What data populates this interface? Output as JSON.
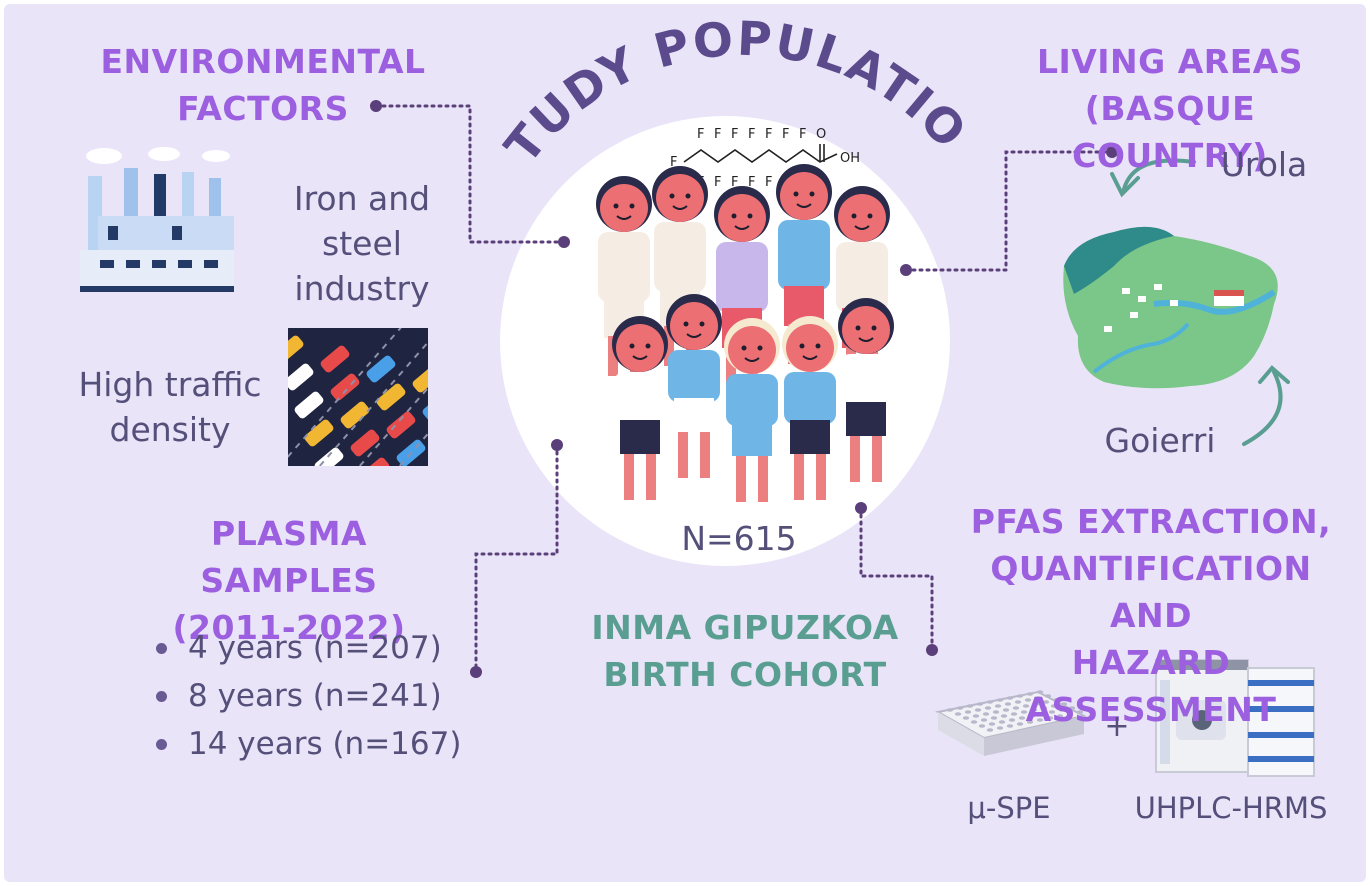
{
  "title": "STUDY POPULATION",
  "environmental": {
    "heading_line1": "ENVIRONMENTAL",
    "heading_line2": "FACTORS",
    "item1_line1": "Iron and",
    "item1_line2": "steel industry",
    "item2_line1": "High traffic",
    "item2_line2": "density"
  },
  "living_areas": {
    "heading_line1": "LIVING AREAS",
    "heading_line2": "(BASQUE COUNTRY)",
    "area1": "Urola",
    "area2": "Goierri"
  },
  "plasma": {
    "heading_line1": "PLASMA SAMPLES",
    "heading_line2": "(2011-2022)",
    "items": [
      "4 years (n=207)",
      "8 years (n=241)",
      "14 years (n=167)"
    ]
  },
  "cohort": {
    "line1": "INMA GIPUZKOA",
    "line2": "BIRTH COHORT",
    "n_label": "N=615"
  },
  "pfas": {
    "heading_line1": "PFAS EXTRACTION,",
    "heading_line2": "QUANTIFICATION AND",
    "heading_line3": "HAZARD ASSESSMENT",
    "method1": "μ-SPE",
    "plus": "+",
    "method2": "UHPLC-HRMS"
  },
  "molecule": {
    "atom_f": "F",
    "atom_o": "O",
    "atom_oh": "OH"
  },
  "colors": {
    "background": "#e9e4f8",
    "heading_purple": "#9b5fe0",
    "title_purple": "#5b4a8c",
    "cohort_green": "#5a9e92",
    "connector": "#5a3f7a"
  },
  "icons": [
    "factory-icon",
    "traffic-icon",
    "children-group-icon",
    "basque-map-icon",
    "spe-plate-icon",
    "lc-ms-instrument-icon",
    "pfoa-molecule-icon"
  ]
}
